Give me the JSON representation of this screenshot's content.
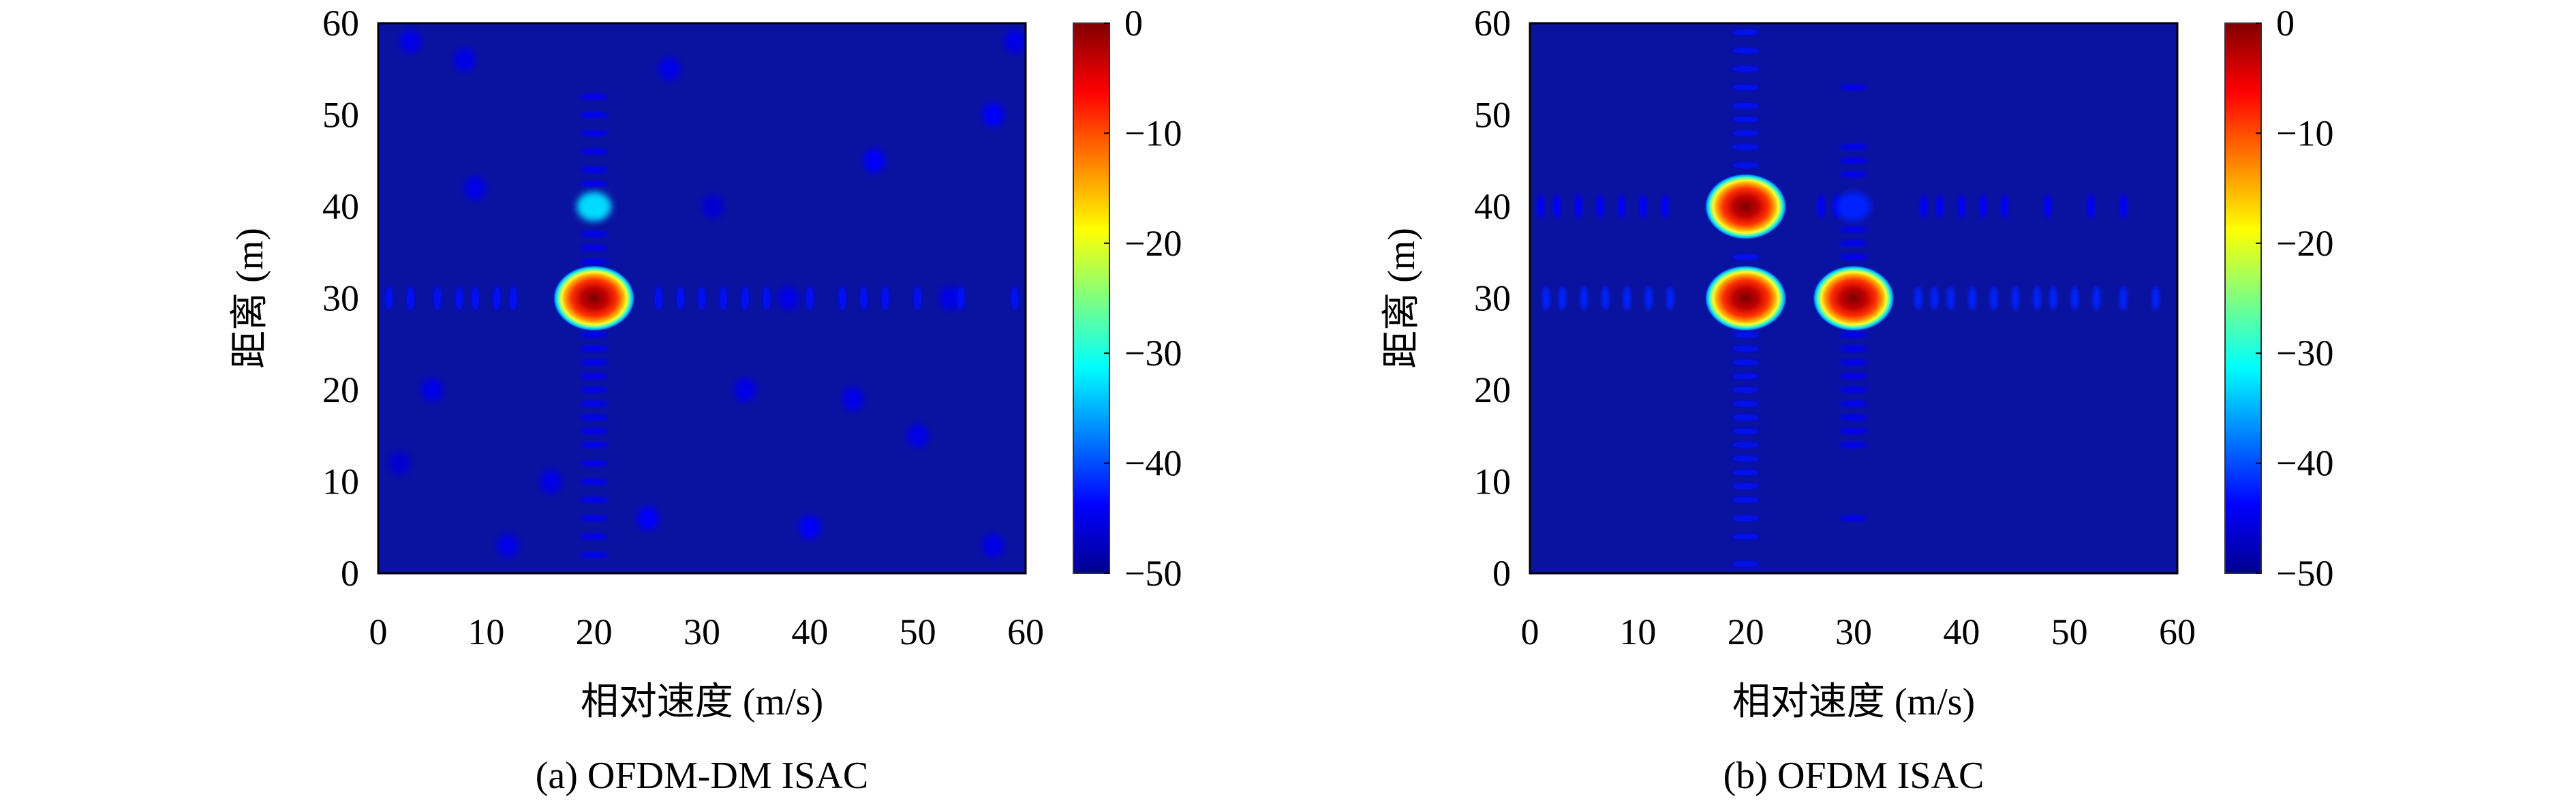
{
  "chart_data": [
    {
      "type": "heatmap",
      "caption": "(a) OFDM-DM ISAC",
      "xlabel": "相对速度 (m/s)",
      "ylabel": "距离 (m)",
      "xlim": [
        0,
        60
      ],
      "ylim": [
        0,
        60
      ],
      "xticks": [
        "0",
        "10",
        "20",
        "30",
        "40",
        "50",
        "60"
      ],
      "yticks": [
        "0",
        "10",
        "20",
        "30",
        "40",
        "50",
        "60"
      ],
      "colorbar": {
        "range": [
          -50,
          0
        ],
        "ticks": [
          "0",
          "−10",
          "−20",
          "−30",
          "−40",
          "−50"
        ],
        "colormap": "jet"
      },
      "peaks": [
        {
          "x": 20,
          "y": 30,
          "level_db": 0
        }
      ],
      "secondary": [
        {
          "x": 20,
          "y": 40,
          "level_db": -33
        }
      ],
      "sidelobe_rows": [
        {
          "y": 30,
          "level_db": -43,
          "x": [
            1,
            3,
            5.5,
            7.5,
            9,
            11,
            12.5,
            26,
            28,
            30,
            32,
            34,
            36,
            40,
            43,
            45,
            47,
            50,
            54,
            59
          ]
        }
      ],
      "sidelobe_cols": [
        {
          "x": 20,
          "level_db": -44,
          "y": [
            2,
            4,
            6,
            8,
            10,
            12,
            14,
            15.5,
            17,
            18.5,
            20,
            21.5,
            23,
            24.5,
            26,
            34,
            35.5,
            37,
            42.5,
            44,
            46,
            48,
            50,
            52
          ]
        }
      ],
      "noise": [
        [
          3,
          58,
          -45
        ],
        [
          8,
          56,
          -45
        ],
        [
          16,
          10,
          -45
        ],
        [
          12,
          3,
          -45
        ],
        [
          40,
          5,
          -44
        ],
        [
          46,
          45,
          -44
        ],
        [
          57,
          50,
          -44
        ],
        [
          57,
          3,
          -45
        ],
        [
          34,
          20,
          -45
        ],
        [
          5,
          20,
          -45
        ],
        [
          50,
          15,
          -45
        ],
        [
          25,
          6,
          -44
        ],
        [
          27,
          55,
          -45
        ],
        [
          9,
          42,
          -45
        ],
        [
          38,
          30,
          -45
        ],
        [
          53,
          30,
          -45
        ],
        [
          44,
          19,
          -45
        ],
        [
          31,
          40,
          -46
        ],
        [
          59,
          58,
          -45
        ],
        [
          2,
          12,
          -46
        ]
      ]
    },
    {
      "type": "heatmap",
      "caption": "(b) OFDM ISAC",
      "xlabel": "相对速度 (m/s)",
      "ylabel": "距离 (m)",
      "xlim": [
        0,
        60
      ],
      "ylim": [
        0,
        60
      ],
      "xticks": [
        "0",
        "10",
        "20",
        "30",
        "40",
        "50",
        "60"
      ],
      "yticks": [
        "0",
        "10",
        "20",
        "30",
        "40",
        "50",
        "60"
      ],
      "colorbar": {
        "range": [
          -50,
          0
        ],
        "ticks": [
          "0",
          "−10",
          "−20",
          "−30",
          "−40",
          "−50"
        ],
        "colormap": "jet"
      },
      "peaks": [
        {
          "x": 20,
          "y": 40,
          "level_db": 0
        },
        {
          "x": 20,
          "y": 30,
          "level_db": 0
        },
        {
          "x": 30,
          "y": 30,
          "level_db": 0
        }
      ],
      "secondary": [
        {
          "x": 30,
          "y": 40,
          "level_db": -42
        }
      ],
      "sidelobe_rows": [
        {
          "y": 30,
          "level_db": -42,
          "x": [
            1.5,
            3,
            5,
            7,
            9,
            11,
            13,
            36,
            37.5,
            39,
            41,
            43,
            45,
            47,
            48.5,
            50.5,
            52.5,
            55,
            58
          ]
        },
        {
          "y": 40,
          "level_db": -44,
          "x": [
            1,
            2.5,
            4.5,
            6.5,
            8.5,
            10.5,
            12.5,
            27,
            28.5,
            36.5,
            38,
            40,
            42,
            44,
            48,
            52,
            55
          ]
        }
      ],
      "sidelobe_cols": [
        {
          "x": 20,
          "level_db": -43,
          "y": [
            1,
            4,
            6,
            8,
            9.5,
            11,
            12.5,
            14,
            15.5,
            17,
            18.5,
            20,
            21.5,
            23,
            24.5,
            26,
            34.5,
            44.5,
            46.5,
            48,
            49.5,
            51,
            53,
            55,
            57,
            59
          ]
        },
        {
          "x": 30,
          "level_db": -44,
          "y": [
            6,
            14,
            15.5,
            17,
            18.5,
            20,
            21.5,
            23,
            24.5,
            26,
            34.5,
            36,
            37.5,
            43.5,
            45,
            46.5,
            53
          ]
        }
      ],
      "noise": []
    }
  ]
}
